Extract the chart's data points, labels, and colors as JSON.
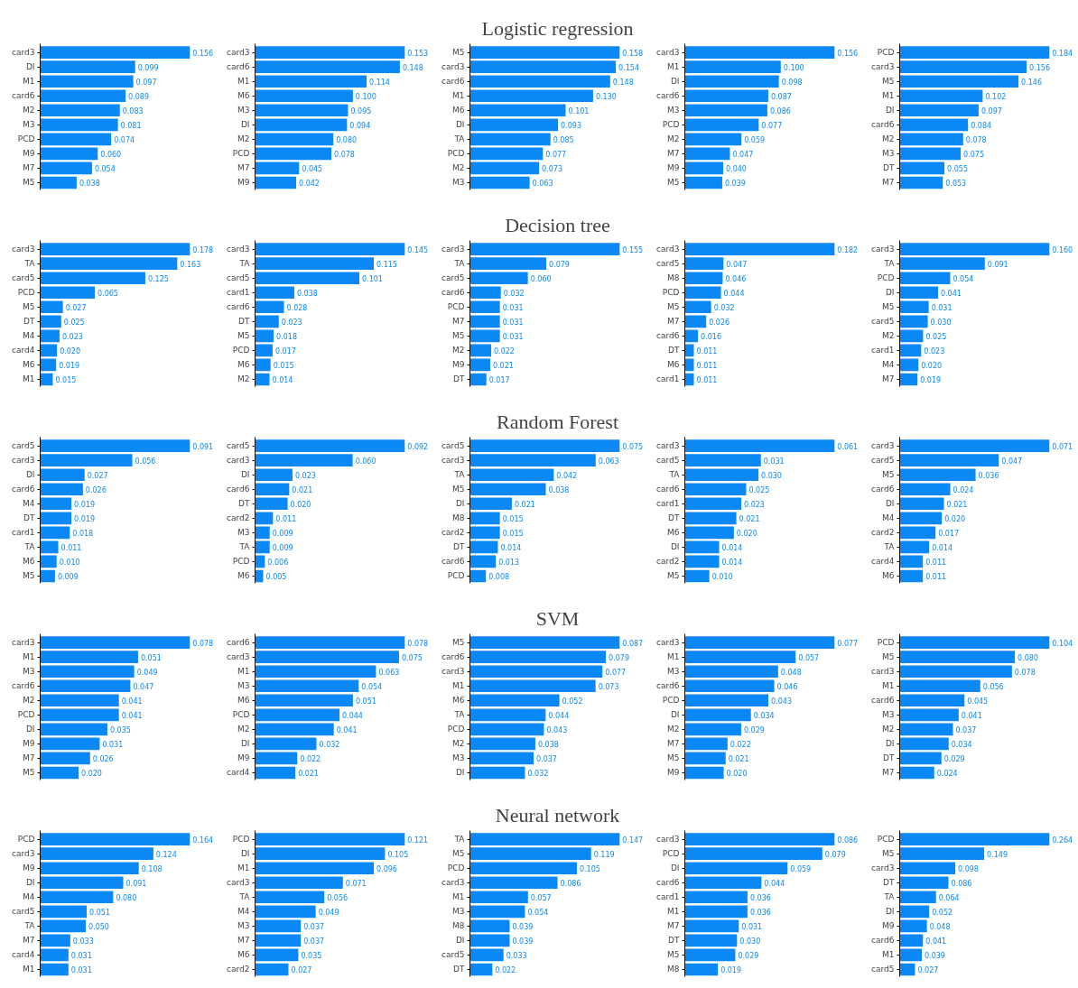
{
  "chart_data": [
    {
      "type": "bar",
      "orientation": "horizontal",
      "color": "#0a88f5",
      "categories": [
        "card3",
        "DI",
        "M1",
        "card6",
        "M2",
        "M3",
        "PCD",
        "M9",
        "M7",
        "M5"
      ],
      "values": [
        0.156,
        0.099,
        0.097,
        0.089,
        0.083,
        0.081,
        0.074,
        0.06,
        0.054,
        0.038
      ],
      "value_labels": [
        "0.156",
        "0.099",
        "0.097",
        "0.089",
        "0.083",
        "0.081",
        "0.074",
        "0.060",
        "0.054",
        "0.038"
      ]
    },
    {
      "type": "bar",
      "orientation": "horizontal",
      "color": "#0a88f5",
      "categories": [
        "card3",
        "card6",
        "M1",
        "M6",
        "M3",
        "DI",
        "M2",
        "PCD",
        "M7",
        "M9"
      ],
      "values": [
        0.153,
        0.148,
        0.114,
        0.1,
        0.095,
        0.094,
        0.08,
        0.078,
        0.045,
        0.042
      ],
      "value_labels": [
        "0.153",
        "0.148",
        "0.114",
        "0.100",
        "0.095",
        "0.094",
        "0.080",
        "0.078",
        "0.045",
        "0.042"
      ]
    },
    {
      "type": "bar",
      "orientation": "horizontal",
      "color": "#0a88f5",
      "title": "Logistic regression",
      "categories": [
        "M5",
        "card3",
        "card6",
        "M1",
        "M6",
        "DI",
        "TA",
        "PCD",
        "M2",
        "M3"
      ],
      "values": [
        0.158,
        0.154,
        0.148,
        0.13,
        0.101,
        0.093,
        0.085,
        0.077,
        0.073,
        0.063
      ],
      "value_labels": [
        "0.158",
        "0.154",
        "0.148",
        "0.130",
        "0.101",
        "0.093",
        "0.085",
        "0.077",
        "0.073",
        "0.063"
      ]
    },
    {
      "type": "bar",
      "orientation": "horizontal",
      "color": "#0a88f5",
      "categories": [
        "card3",
        "M1",
        "DI",
        "card6",
        "M3",
        "PCD",
        "M2",
        "M7",
        "M9",
        "M5"
      ],
      "values": [
        0.156,
        0.1,
        0.098,
        0.087,
        0.086,
        0.077,
        0.059,
        0.047,
        0.04,
        0.039
      ],
      "value_labels": [
        "0.156",
        "0.100",
        "0.098",
        "0.087",
        "0.086",
        "0.077",
        "0.059",
        "0.047",
        "0.040",
        "0.039"
      ]
    },
    {
      "type": "bar",
      "orientation": "horizontal",
      "color": "#0a88f5",
      "categories": [
        "PCD",
        "card3",
        "M5",
        "M1",
        "DI",
        "card6",
        "M2",
        "M3",
        "DT",
        "M7"
      ],
      "values": [
        0.184,
        0.156,
        0.146,
        0.102,
        0.097,
        0.084,
        0.078,
        0.075,
        0.055,
        0.053
      ],
      "value_labels": [
        "0.184",
        "0.156",
        "0.146",
        "0.102",
        "0.097",
        "0.084",
        "0.078",
        "0.075",
        "0.055",
        "0.053"
      ]
    },
    {
      "type": "bar",
      "orientation": "horizontal",
      "color": "#0a88f5",
      "categories": [
        "card3",
        "TA",
        "card5",
        "PCD",
        "M5",
        "DT",
        "M4",
        "card4",
        "M6",
        "M1"
      ],
      "values": [
        0.178,
        0.163,
        0.125,
        0.065,
        0.027,
        0.025,
        0.023,
        0.02,
        0.019,
        0.015
      ],
      "value_labels": [
        "0.178",
        "0.163",
        "0.125",
        "0.065",
        "0.027",
        "0.025",
        "0.023",
        "0.020",
        "0.019",
        "0.015"
      ]
    },
    {
      "type": "bar",
      "orientation": "horizontal",
      "color": "#0a88f5",
      "categories": [
        "card3",
        "TA",
        "card5",
        "card1",
        "card6",
        "DT",
        "M5",
        "PCD",
        "M6",
        "M2"
      ],
      "values": [
        0.145,
        0.115,
        0.101,
        0.038,
        0.028,
        0.023,
        0.018,
        0.017,
        0.015,
        0.014
      ],
      "value_labels": [
        "0.145",
        "0.115",
        "0.101",
        "0.038",
        "0.028",
        "0.023",
        "0.018",
        "0.017",
        "0.015",
        "0.014"
      ]
    },
    {
      "type": "bar",
      "orientation": "horizontal",
      "color": "#0a88f5",
      "title": "Decision tree",
      "categories": [
        "card3",
        "TA",
        "card5",
        "card6",
        "PCD",
        "M7",
        "M5",
        "M2",
        "M9",
        "DT"
      ],
      "values": [
        0.155,
        0.079,
        0.06,
        0.032,
        0.031,
        0.031,
        0.031,
        0.022,
        0.021,
        0.017
      ],
      "value_labels": [
        "0.155",
        "0.079",
        "0.060",
        "0.032",
        "0.031",
        "0.031",
        "0.031",
        "0.022",
        "0.021",
        "0.017"
      ]
    },
    {
      "type": "bar",
      "orientation": "horizontal",
      "color": "#0a88f5",
      "categories": [
        "card3",
        "card5",
        "M8",
        "PCD",
        "M5",
        "M7",
        "card6",
        "DT",
        "M6",
        "card1"
      ],
      "values": [
        0.182,
        0.047,
        0.046,
        0.044,
        0.032,
        0.026,
        0.016,
        0.011,
        0.011,
        0.011
      ],
      "value_labels": [
        "0.182",
        "0.047",
        "0.046",
        "0.044",
        "0.032",
        "0.026",
        "0.016",
        "0.011",
        "0.011",
        "0.011"
      ]
    },
    {
      "type": "bar",
      "orientation": "horizontal",
      "color": "#0a88f5",
      "categories": [
        "card3",
        "TA",
        "PCD",
        "DI",
        "M5",
        "card5",
        "M2",
        "card1",
        "M4",
        "M7"
      ],
      "values": [
        0.16,
        0.091,
        0.054,
        0.041,
        0.031,
        0.03,
        0.025,
        0.023,
        0.02,
        0.019
      ],
      "value_labels": [
        "0.160",
        "0.091",
        "0.054",
        "0.041",
        "0.031",
        "0.030",
        "0.025",
        "0.023",
        "0.020",
        "0.019"
      ]
    },
    {
      "type": "bar",
      "orientation": "horizontal",
      "color": "#0a88f5",
      "categories": [
        "card5",
        "card3",
        "DI",
        "card6",
        "M4",
        "DT",
        "card1",
        "TA",
        "M6",
        "M5"
      ],
      "values": [
        0.091,
        0.056,
        0.027,
        0.026,
        0.019,
        0.019,
        0.018,
        0.011,
        0.01,
        0.009
      ],
      "value_labels": [
        "0.091",
        "0.056",
        "0.027",
        "0.026",
        "0.019",
        "0.019",
        "0.018",
        "0.011",
        "0.010",
        "0.009"
      ]
    },
    {
      "type": "bar",
      "orientation": "horizontal",
      "color": "#0a88f5",
      "categories": [
        "card5",
        "card3",
        "DI",
        "card6",
        "DT",
        "card2",
        "M3",
        "TA",
        "PCD",
        "M6"
      ],
      "values": [
        0.092,
        0.06,
        0.023,
        0.021,
        0.02,
        0.011,
        0.009,
        0.009,
        0.006,
        0.005
      ],
      "value_labels": [
        "0.092",
        "0.060",
        "0.023",
        "0.021",
        "0.020",
        "0.011",
        "0.009",
        "0.009",
        "0.006",
        "0.005"
      ]
    },
    {
      "type": "bar",
      "orientation": "horizontal",
      "color": "#0a88f5",
      "title": "Random Forest",
      "categories": [
        "card5",
        "card3",
        "TA",
        "M5",
        "DI",
        "M8",
        "card2",
        "DT",
        "card6",
        "PCD"
      ],
      "values": [
        0.075,
        0.063,
        0.042,
        0.038,
        0.021,
        0.015,
        0.015,
        0.014,
        0.013,
        0.008
      ],
      "value_labels": [
        "0.075",
        "0.063",
        "0.042",
        "0.038",
        "0.021",
        "0.015",
        "0.015",
        "0.014",
        "0.013",
        "0.008"
      ]
    },
    {
      "type": "bar",
      "orientation": "horizontal",
      "color": "#0a88f5",
      "categories": [
        "card3",
        "card5",
        "TA",
        "card6",
        "card1",
        "DT",
        "M6",
        "DI",
        "card2",
        "M5"
      ],
      "values": [
        0.061,
        0.031,
        0.03,
        0.025,
        0.023,
        0.021,
        0.02,
        0.014,
        0.014,
        0.01
      ],
      "value_labels": [
        "0.061",
        "0.031",
        "0.030",
        "0.025",
        "0.023",
        "0.021",
        "0.020",
        "0.014",
        "0.014",
        "0.010"
      ]
    },
    {
      "type": "bar",
      "orientation": "horizontal",
      "color": "#0a88f5",
      "categories": [
        "card3",
        "card5",
        "M5",
        "card6",
        "DI",
        "M4",
        "card2",
        "TA",
        "card4",
        "M6"
      ],
      "values": [
        0.071,
        0.047,
        0.036,
        0.024,
        0.021,
        0.02,
        0.017,
        0.014,
        0.011,
        0.011
      ],
      "value_labels": [
        "0.071",
        "0.047",
        "0.036",
        "0.024",
        "0.021",
        "0.020",
        "0.017",
        "0.014",
        "0.011",
        "0.011"
      ]
    },
    {
      "type": "bar",
      "orientation": "horizontal",
      "color": "#0a88f5",
      "categories": [
        "card3",
        "M1",
        "M3",
        "card6",
        "M2",
        "PCD",
        "DI",
        "M9",
        "M7",
        "M5"
      ],
      "values": [
        0.078,
        0.051,
        0.049,
        0.047,
        0.041,
        0.041,
        0.035,
        0.031,
        0.026,
        0.02
      ],
      "value_labels": [
        "0.078",
        "0.051",
        "0.049",
        "0.047",
        "0.041",
        "0.041",
        "0.035",
        "0.031",
        "0.026",
        "0.020"
      ]
    },
    {
      "type": "bar",
      "orientation": "horizontal",
      "color": "#0a88f5",
      "categories": [
        "card6",
        "card3",
        "M1",
        "M3",
        "M6",
        "PCD",
        "M2",
        "DI",
        "M9",
        "card4"
      ],
      "values": [
        0.078,
        0.075,
        0.063,
        0.054,
        0.051,
        0.044,
        0.041,
        0.032,
        0.022,
        0.021
      ],
      "value_labels": [
        "0.078",
        "0.075",
        "0.063",
        "0.054",
        "0.051",
        "0.044",
        "0.041",
        "0.032",
        "0.022",
        "0.021"
      ]
    },
    {
      "type": "bar",
      "orientation": "horizontal",
      "color": "#0a88f5",
      "title": "SVM",
      "categories": [
        "M5",
        "card6",
        "card3",
        "M1",
        "M6",
        "TA",
        "PCD",
        "M2",
        "M3",
        "DI"
      ],
      "values": [
        0.087,
        0.079,
        0.077,
        0.073,
        0.052,
        0.044,
        0.043,
        0.038,
        0.037,
        0.032
      ],
      "value_labels": [
        "0.087",
        "0.079",
        "0.077",
        "0.073",
        "0.052",
        "0.044",
        "0.043",
        "0.038",
        "0.037",
        "0.032"
      ]
    },
    {
      "type": "bar",
      "orientation": "horizontal",
      "color": "#0a88f5",
      "categories": [
        "card3",
        "M1",
        "M3",
        "card6",
        "PCD",
        "DI",
        "M2",
        "M7",
        "M5",
        "M9"
      ],
      "values": [
        0.077,
        0.057,
        0.048,
        0.046,
        0.043,
        0.034,
        0.029,
        0.022,
        0.021,
        0.02
      ],
      "value_labels": [
        "0.077",
        "0.057",
        "0.048",
        "0.046",
        "0.043",
        "0.034",
        "0.029",
        "0.022",
        "0.021",
        "0.020"
      ]
    },
    {
      "type": "bar",
      "orientation": "horizontal",
      "color": "#0a88f5",
      "categories": [
        "PCD",
        "M5",
        "card3",
        "M1",
        "card6",
        "M3",
        "M2",
        "DI",
        "DT",
        "M7"
      ],
      "values": [
        0.104,
        0.08,
        0.078,
        0.056,
        0.045,
        0.041,
        0.037,
        0.034,
        0.029,
        0.024
      ],
      "value_labels": [
        "0.104",
        "0.080",
        "0.078",
        "0.056",
        "0.045",
        "0.041",
        "0.037",
        "0.034",
        "0.029",
        "0.024"
      ]
    },
    {
      "type": "bar",
      "orientation": "horizontal",
      "color": "#0a88f5",
      "categories": [
        "PCD",
        "card3",
        "M9",
        "DI",
        "M4",
        "card5",
        "TA",
        "M7",
        "card4",
        "M1"
      ],
      "values": [
        0.164,
        0.124,
        0.108,
        0.091,
        0.08,
        0.051,
        0.05,
        0.033,
        0.031,
        0.031
      ],
      "value_labels": [
        "0.164",
        "0.124",
        "0.108",
        "0.091",
        "0.080",
        "0.051",
        "0.050",
        "0.033",
        "0.031",
        "0.031"
      ]
    },
    {
      "type": "bar",
      "orientation": "horizontal",
      "color": "#0a88f5",
      "categories": [
        "PCD",
        "DI",
        "M1",
        "card3",
        "TA",
        "M4",
        "M3",
        "M7",
        "M6",
        "card2"
      ],
      "values": [
        0.121,
        0.105,
        0.096,
        0.071,
        0.056,
        0.049,
        0.037,
        0.037,
        0.035,
        0.027
      ],
      "value_labels": [
        "0.121",
        "0.105",
        "0.096",
        "0.071",
        "0.056",
        "0.049",
        "0.037",
        "0.037",
        "0.035",
        "0.027"
      ]
    },
    {
      "type": "bar",
      "orientation": "horizontal",
      "color": "#0a88f5",
      "title": "Neural network",
      "categories": [
        "TA",
        "M5",
        "PCD",
        "card3",
        "M1",
        "M3",
        "M8",
        "DI",
        "card5",
        "DT"
      ],
      "values": [
        0.147,
        0.119,
        0.105,
        0.086,
        0.057,
        0.054,
        0.039,
        0.039,
        0.033,
        0.022
      ],
      "value_labels": [
        "0.147",
        "0.119",
        "0.105",
        "0.086",
        "0.057",
        "0.054",
        "0.039",
        "0.039",
        "0.033",
        "0.022"
      ]
    },
    {
      "type": "bar",
      "orientation": "horizontal",
      "color": "#0a88f5",
      "categories": [
        "card3",
        "PCD",
        "DI",
        "card6",
        "card1",
        "M1",
        "M7",
        "DT",
        "M5",
        "M8"
      ],
      "values": [
        0.086,
        0.079,
        0.059,
        0.044,
        0.036,
        0.036,
        0.031,
        0.03,
        0.029,
        0.019
      ],
      "value_labels": [
        "0.086",
        "0.079",
        "0.059",
        "0.044",
        "0.036",
        "0.036",
        "0.031",
        "0.030",
        "0.029",
        "0.019"
      ]
    },
    {
      "type": "bar",
      "orientation": "horizontal",
      "color": "#0a88f5",
      "categories": [
        "PCD",
        "M5",
        "card3",
        "DT",
        "TA",
        "DI",
        "M9",
        "card6",
        "M1",
        "card5"
      ],
      "values": [
        0.264,
        0.149,
        0.098,
        0.086,
        0.064,
        0.052,
        0.048,
        0.041,
        0.039,
        0.027
      ],
      "value_labels": [
        "0.264",
        "0.149",
        "0.098",
        "0.086",
        "0.064",
        "0.052",
        "0.048",
        "0.041",
        "0.039",
        "0.027"
      ]
    }
  ]
}
